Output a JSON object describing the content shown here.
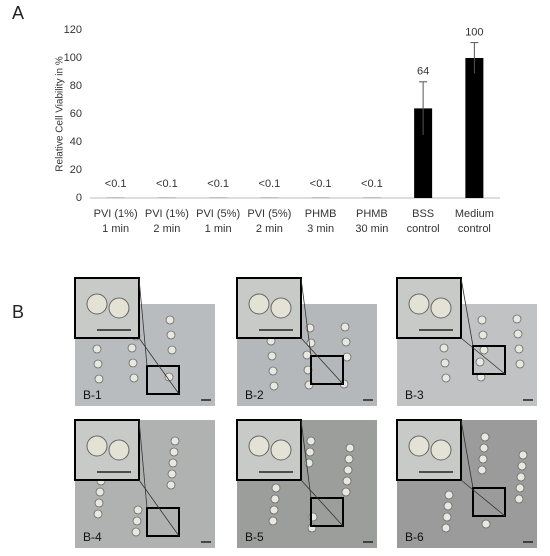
{
  "chart_data": {
    "type": "bar",
    "panel_label": "A",
    "y_label": "Relative Cell Viability in %",
    "categories": [
      [
        "PVI (1%)",
        "1 min"
      ],
      [
        "PVI (1%)",
        "2 min"
      ],
      [
        "PVI (5%)",
        "1 min"
      ],
      [
        "PVI (5%)",
        "2 min"
      ],
      [
        "PHMB",
        "3 min"
      ],
      [
        "PHMB",
        "30 min"
      ],
      [
        "BSS",
        "control"
      ],
      [
        "Medium",
        "control"
      ]
    ],
    "values": [
      0.1,
      0.1,
      0.1,
      0.1,
      0.1,
      0.1,
      64,
      100
    ],
    "value_labels": [
      "<0.1",
      "<0.1",
      "<0.1",
      "<0.1",
      "<0.1",
      "<0.1",
      "64",
      "100"
    ],
    "errors": [
      null,
      null,
      null,
      null,
      null,
      null,
      19,
      11
    ],
    "color": "#000000",
    "ylim": [
      0,
      120
    ],
    "yticks": [
      0,
      20,
      40,
      60,
      80,
      100,
      120
    ]
  },
  "micrographs": {
    "panel_label": "B",
    "labels": [
      "B-1",
      "B-2",
      "B-3",
      "B-4",
      "B-5",
      "B-6"
    ]
  }
}
